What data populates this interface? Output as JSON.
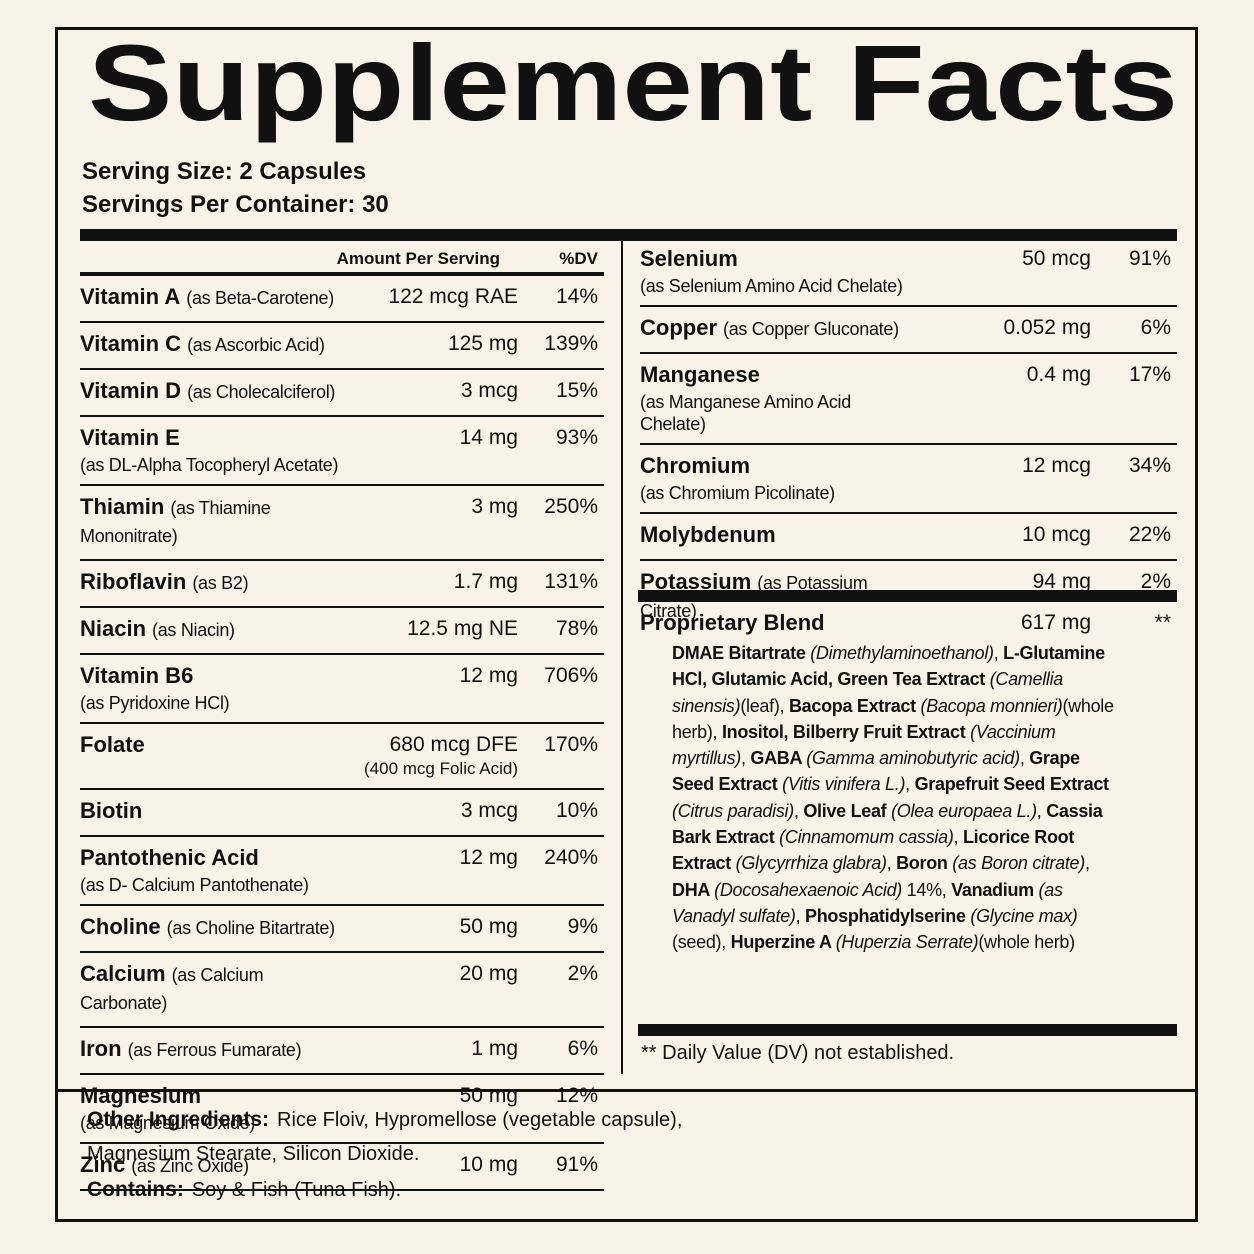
{
  "title": "Supplement Facts",
  "serving_size": "Serving Size: 2 Capsules",
  "servings_per_container": "Servings Per Container: 30",
  "header": {
    "amount": "Amount Per Serving",
    "dv": "%DV"
  },
  "left_rows": [
    {
      "name": "Vitamin A",
      "source": "(as Beta-Carotene)",
      "amount": "122 mcg RAE",
      "dv": "14%"
    },
    {
      "name": "Vitamin C",
      "source": "(as Ascorbic Acid)",
      "amount": "125 mg",
      "dv": "139%"
    },
    {
      "name": "Vitamin D",
      "source": "(as Cholecalciferol)",
      "amount": "3 mcg",
      "dv": "15%"
    },
    {
      "name": "Vitamin E",
      "detail": "(as DL-Alpha Tocopheryl Acetate)",
      "amount": "14 mg",
      "dv": "93%"
    },
    {
      "name": "Thiamin",
      "source": "(as Thiamine Mononitrate)",
      "amount": "3 mg",
      "dv": "250%"
    },
    {
      "name": "Riboflavin",
      "source": "(as B2)",
      "amount": "1.7 mg",
      "dv": "131%"
    },
    {
      "name": "Niacin",
      "source": "(as Niacin)",
      "amount": "12.5 mg NE",
      "dv": "78%"
    },
    {
      "name": "Vitamin B6",
      "detail": "(as Pyridoxine HCl)",
      "amount": "12 mg",
      "dv": "706%"
    },
    {
      "name": "Folate",
      "amount": "680 mcg DFE",
      "amount_note": "(400 mcg Folic Acid)",
      "dv": "170%"
    },
    {
      "name": "Biotin",
      "amount": "3 mcg",
      "dv": "10%"
    },
    {
      "name": "Pantothenic Acid",
      "detail": "(as D- Calcium Pantothenate)",
      "amount": "12 mg",
      "dv": "240%"
    },
    {
      "name": "Choline",
      "source": "(as Choline Bitartrate)",
      "amount": "50 mg",
      "dv": "9%"
    },
    {
      "name": "Calcium",
      "source": "(as Calcium Carbonate)",
      "amount": "20 mg",
      "dv": "2%"
    },
    {
      "name": "Iron",
      "source": "(as Ferrous Fumarate)",
      "amount": "1 mg",
      "dv": "6%"
    },
    {
      "name": "Magnesium",
      "detail": "(as Magnesium Oxide)",
      "amount": "50 mg",
      "dv": "12%"
    },
    {
      "name": "Zinc",
      "source": "(as Zinc Oxide)",
      "amount": "10 mg",
      "dv": "91%"
    }
  ],
  "right_rows": [
    {
      "name": "Selenium",
      "detail": "(as Selenium Amino Acid Chelate)",
      "amount": "50 mcg",
      "dv": "91%"
    },
    {
      "name": "Copper",
      "source": "(as Copper Gluconate)",
      "amount": "0.052 mg",
      "dv": "6%"
    },
    {
      "name": "Manganese",
      "detail": "(as Manganese Amino Acid Chelate)",
      "amount": "0.4 mg",
      "dv": "17%"
    },
    {
      "name": "Chromium",
      "detail": "(as Chromium Picolinate)",
      "amount": "12 mcg",
      "dv": "34%"
    },
    {
      "name": "Molybdenum",
      "amount": "10 mcg",
      "dv": "22%"
    },
    {
      "name": "Potassium",
      "source": "(as Potassium Citrate)",
      "amount": "94 mg",
      "dv": "2%"
    }
  ],
  "blend": {
    "name": "Proprietary Blend",
    "amount": "617 mg",
    "dv": "**",
    "ingredients": [
      {
        "text": "DMAE Bitartrate ",
        "style": "bold"
      },
      {
        "text": "(Dimethylaminoethanol)",
        "style": "italic"
      },
      {
        "text": ", ",
        "style": "normal"
      },
      {
        "text": "L-Glutamine HCl, Glutamic Acid, Green Tea Extract ",
        "style": "bold"
      },
      {
        "text": "(Camellia sinensis)",
        "style": "italic"
      },
      {
        "text": "(leaf), ",
        "style": "normal"
      },
      {
        "text": "Bacopa Extract ",
        "style": "bold"
      },
      {
        "text": "(Bacopa monnieri)",
        "style": "italic"
      },
      {
        "text": "(whole herb), ",
        "style": "normal"
      },
      {
        "text": "Inositol, Bilberry Fruit Extract ",
        "style": "bold"
      },
      {
        "text": "(Vaccinium myrtillus)",
        "style": "italic"
      },
      {
        "text": ", ",
        "style": "normal"
      },
      {
        "text": "GABA ",
        "style": "bold"
      },
      {
        "text": "(Gamma aminobutyric acid)",
        "style": "italic"
      },
      {
        "text": ", ",
        "style": "normal"
      },
      {
        "text": "Grape Seed Extract ",
        "style": "bold"
      },
      {
        "text": "(Vitis vinifera L.)",
        "style": "italic"
      },
      {
        "text": ", ",
        "style": "normal"
      },
      {
        "text": "Grapefruit Seed Extract ",
        "style": "bold"
      },
      {
        "text": "(Citrus paradisi)",
        "style": "italic"
      },
      {
        "text": ", ",
        "style": "normal"
      },
      {
        "text": "Olive Leaf ",
        "style": "bold"
      },
      {
        "text": "(Olea europaea L.)",
        "style": "italic"
      },
      {
        "text": ", ",
        "style": "normal"
      },
      {
        "text": "Cassia Bark Extract ",
        "style": "bold"
      },
      {
        "text": "(Cinnamomum cassia)",
        "style": "italic"
      },
      {
        "text": ", ",
        "style": "normal"
      },
      {
        "text": "Licorice Root Extract ",
        "style": "bold"
      },
      {
        "text": "(Glycyrrhiza glabra)",
        "style": "italic"
      },
      {
        "text": ", ",
        "style": "normal"
      },
      {
        "text": "Boron ",
        "style": "bold"
      },
      {
        "text": "(as Boron citrate)",
        "style": "italic"
      },
      {
        "text": ", ",
        "style": "normal"
      },
      {
        "text": "DHA ",
        "style": "bold"
      },
      {
        "text": "(Docosahexaenoic Acid)",
        "style": "italic"
      },
      {
        "text": " 14%, ",
        "style": "normal"
      },
      {
        "text": "Vanadium ",
        "style": "bold"
      },
      {
        "text": "(as Vanadyl sulfate)",
        "style": "italic"
      },
      {
        "text": ", ",
        "style": "normal"
      },
      {
        "text": "Phosphatidylserine ",
        "style": "bold"
      },
      {
        "text": "(Glycine max)",
        "style": "italic"
      },
      {
        "text": "(seed), ",
        "style": "normal"
      },
      {
        "text": "Huperzine A ",
        "style": "bold"
      },
      {
        "text": "(Huperzia Serrate)",
        "style": "italic"
      },
      {
        "text": "(whole herb)",
        "style": "normal"
      }
    ]
  },
  "footnote": "** Daily Value (DV) not established.",
  "other_ingredients": {
    "label": "Other Ingredients:",
    "lines": [
      "Rice Floiv, Hypromellose (vegetable capsule),",
      "Magnesium Stearate, Silicon Dioxide."
    ]
  },
  "contains": {
    "label": "Contains:",
    "text": "Soy & Fish (Tuna Fish)."
  }
}
